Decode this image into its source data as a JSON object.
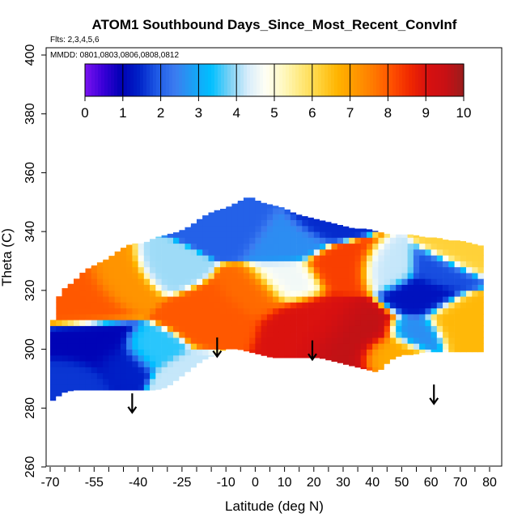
{
  "chart_data": {
    "type": "heatmap",
    "title": "ATOM1 Southbound Days_Since_Most_Recent_ConvInf",
    "subtitle_flights": "Flts: 2,3,4,5,6",
    "subtitle_dates": "MMDD: 0801,0803,0806,0808,0812",
    "xlabel": "Latitude (deg N)",
    "ylabel": "Theta (C)",
    "xlim": [
      -72,
      84
    ],
    "ylim": [
      260,
      405
    ],
    "x_ticks": [
      -70,
      -55,
      -40,
      -25,
      -10,
      0,
      10,
      20,
      30,
      40,
      50,
      60,
      70,
      80
    ],
    "x_tick_labels": [
      "-70",
      "-55",
      "-40",
      "-25",
      "-10",
      "0",
      "10",
      "20",
      "30",
      "40",
      "50",
      "60",
      "70",
      "80"
    ],
    "x_minor_ticks": [
      -65,
      -60,
      -50,
      -45,
      -35,
      -30,
      -20,
      -15,
      -5,
      5,
      15,
      25,
      35,
      45,
      55,
      65,
      75
    ],
    "y_ticks": [
      260,
      280,
      300,
      320,
      340,
      360,
      380,
      400
    ],
    "y_tick_labels": [
      "260",
      "280",
      "300",
      "320",
      "340",
      "360",
      "380",
      "400"
    ],
    "colorbar": {
      "range": [
        0,
        10
      ],
      "ticks": [
        0,
        1,
        2,
        3,
        4,
        5,
        6,
        7,
        8,
        9,
        10
      ],
      "tick_labels": [
        "0",
        "1",
        "2",
        "3",
        "4",
        "5",
        "6",
        "7",
        "8",
        "9",
        "10"
      ],
      "colors": [
        "#7a12f0",
        "#3a00d8",
        "#0000b4",
        "#0022c8",
        "#1e5ae6",
        "#3c7cf0",
        "#1aa0f5",
        "#00c0ff",
        "#78d0f5",
        "#d6ecfb",
        "#fffff5",
        "#fff8c0",
        "#ffe87a",
        "#ffd23a",
        "#ffb400",
        "#ff9800",
        "#ff7a00",
        "#ff5000",
        "#f02800",
        "#d81010",
        "#c81014",
        "#9a1c1c"
      ]
    },
    "data_envelope": {
      "lat": [
        -70,
        -68,
        -66,
        -62,
        -58,
        -54,
        -50,
        -46,
        -42,
        -38,
        -34,
        -30,
        -26,
        -22,
        -18,
        -14,
        -10,
        -6,
        -2,
        2,
        6,
        10,
        14,
        18,
        22,
        26,
        30,
        34,
        38,
        42,
        46,
        50,
        54,
        58,
        62,
        66,
        70,
        74,
        78
      ],
      "top": [
        304,
        316,
        320,
        323,
        327,
        329,
        331,
        334,
        336,
        336,
        338,
        339,
        340,
        342,
        345,
        347,
        348,
        350,
        352,
        350,
        349,
        348,
        346,
        345,
        344,
        343,
        342,
        341,
        341,
        340,
        339,
        339,
        339,
        338,
        338,
        337,
        337,
        336,
        335
      ],
      "bottom": [
        282,
        283,
        285,
        286,
        286,
        286,
        286,
        286,
        286,
        286,
        286,
        287,
        290,
        293,
        296,
        298,
        300,
        300,
        299,
        298,
        297,
        297,
        297,
        297,
        297,
        296,
        295,
        294,
        293,
        292,
        296,
        298,
        298,
        299,
        299,
        299,
        299,
        299,
        299
      ]
    },
    "field_features": [
      {
        "lat": -55,
        "theta": 300,
        "value": 1.0,
        "spread": 7
      },
      {
        "lat": -46,
        "theta": 296,
        "value": 1.4,
        "spread": 5
      },
      {
        "lat": -62,
        "theta": 292,
        "value": 1.6,
        "spread": 5
      },
      {
        "lat": -58,
        "theta": 318,
        "value": 8.0,
        "spread": 7
      },
      {
        "lat": -45,
        "theta": 322,
        "value": 7.2,
        "spread": 6
      },
      {
        "lat": -30,
        "theta": 326,
        "value": 4.0,
        "spread": 5
      },
      {
        "lat": -36,
        "theta": 300,
        "value": 3.5,
        "spread": 5
      },
      {
        "lat": -22,
        "theta": 292,
        "value": 4.2,
        "spread": 5
      },
      {
        "lat": -14,
        "theta": 312,
        "value": 8.0,
        "spread": 7
      },
      {
        "lat": -6,
        "theta": 342,
        "value": 2.0,
        "spread": 6
      },
      {
        "lat": 10,
        "theta": 338,
        "value": 2.6,
        "spread": 6
      },
      {
        "lat": 22,
        "theta": 344,
        "value": 1.5,
        "spread": 5
      },
      {
        "lat": 12,
        "theta": 322,
        "value": 4.6,
        "spread": 6
      },
      {
        "lat": 0,
        "theta": 318,
        "value": 7.8,
        "spread": 6
      },
      {
        "lat": 20,
        "theta": 310,
        "value": 9.0,
        "spread": 8
      },
      {
        "lat": 34,
        "theta": 306,
        "value": 9.6,
        "spread": 8
      },
      {
        "lat": 30,
        "theta": 326,
        "value": 8.3,
        "spread": 6
      },
      {
        "lat": 44,
        "theta": 326,
        "value": 4.2,
        "spread": 5
      },
      {
        "lat": 56,
        "theta": 318,
        "value": 1.2,
        "spread": 6
      },
      {
        "lat": 54,
        "theta": 306,
        "value": 2.6,
        "spread": 5
      },
      {
        "lat": 64,
        "theta": 326,
        "value": 1.8,
        "spread": 5
      },
      {
        "lat": 70,
        "theta": 310,
        "value": 6.6,
        "spread": 6
      },
      {
        "lat": 72,
        "theta": 332,
        "value": 6.2,
        "spread": 5
      },
      {
        "lat": 46,
        "theta": 300,
        "value": 6.8,
        "spread": 5
      }
    ],
    "arrows": [
      {
        "lat": -42,
        "theta": 285
      },
      {
        "lat": -13,
        "theta": 304
      },
      {
        "lat": 19.5,
        "theta": 303
      },
      {
        "lat": 61,
        "theta": 288
      }
    ]
  }
}
